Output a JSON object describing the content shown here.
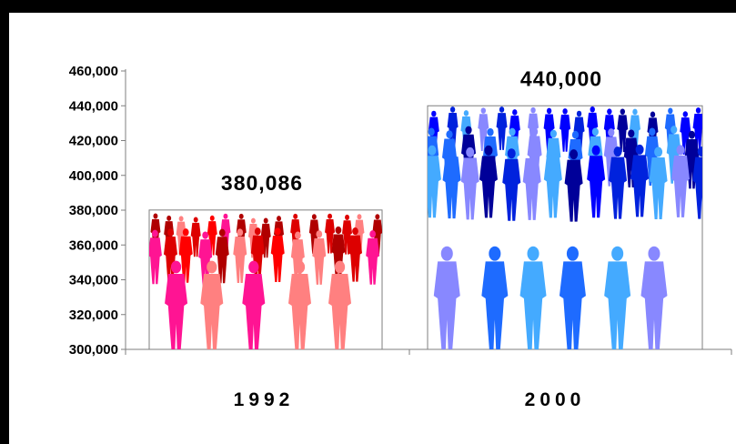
{
  "chart_data": {
    "type": "bar",
    "categories": [
      "1992",
      "2000"
    ],
    "values": [
      380086,
      440000
    ],
    "data_labels": [
      "380,086",
      "440,000"
    ],
    "ylim": [
      300000,
      460000
    ],
    "yticks": [
      300000,
      320000,
      340000,
      360000,
      380000,
      400000,
      420000,
      440000,
      460000
    ],
    "ytick_labels": [
      "300,000",
      "320,000",
      "340,000",
      "360,000",
      "380,000",
      "400,000",
      "420,000",
      "440,000",
      "460,000"
    ],
    "grid": false,
    "legend": "none",
    "bar_fill": [
      "people-silhouettes-red-pink",
      "people-silhouettes-blue"
    ],
    "colors": {
      "bar_1992": [
        "#ff0000",
        "#dd0000",
        "#b00000",
        "#ff1493",
        "#ff8080",
        "#8b1a1a"
      ],
      "bar_2000": [
        "#0000ff",
        "#0022dd",
        "#000099",
        "#1e6bff",
        "#44aaff",
        "#8888ff",
        "#101070"
      ]
    }
  }
}
